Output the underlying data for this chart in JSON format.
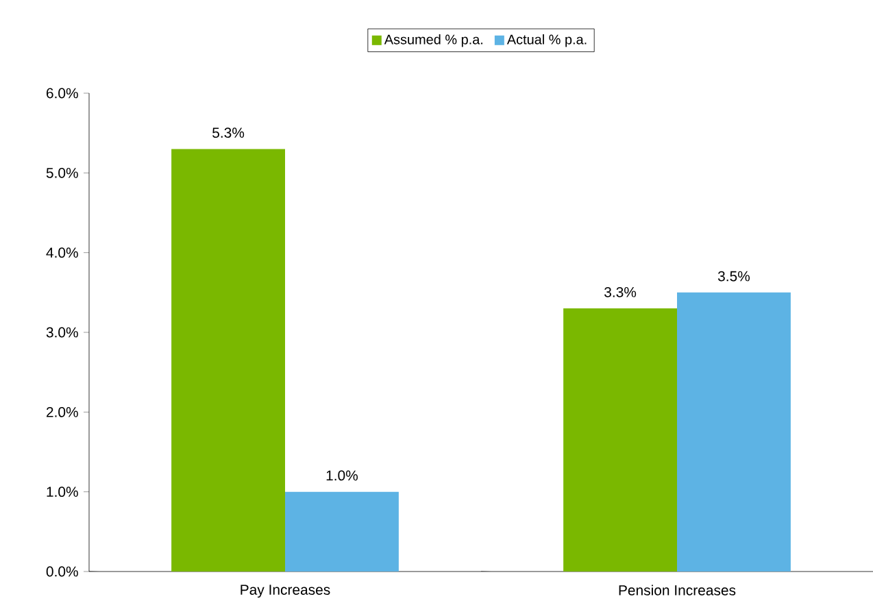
{
  "chart_data": {
    "type": "bar",
    "categories": [
      "Pay Increases",
      "Pension Increases"
    ],
    "series": [
      {
        "name": "Assumed % p.a.",
        "color": "#7ab800",
        "values": [
          5.3,
          3.3
        ],
        "value_labels": [
          "5.3%",
          "3.3%"
        ]
      },
      {
        "name": "Actual % p.a.",
        "color": "#5db3e4",
        "values": [
          1.0,
          3.5
        ],
        "value_labels": [
          "1.0%",
          "3.5%"
        ]
      }
    ],
    "ylim": [
      0,
      6
    ],
    "yticks": [
      {
        "value": 0,
        "label": "0.0%"
      },
      {
        "value": 1,
        "label": "1.0%"
      },
      {
        "value": 2,
        "label": "2.0%"
      },
      {
        "value": 3,
        "label": "3.0%"
      },
      {
        "value": 4,
        "label": "4.0%"
      },
      {
        "value": 5,
        "label": "5.0%"
      },
      {
        "value": 6,
        "label": "6.0%"
      }
    ],
    "grid": false,
    "legend": "top"
  }
}
